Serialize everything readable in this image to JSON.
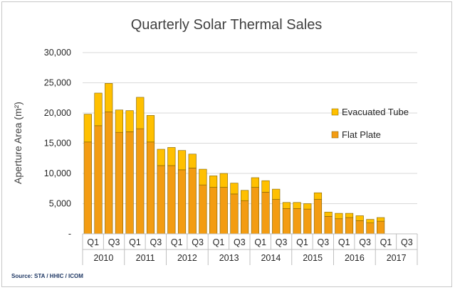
{
  "chart_data": {
    "type": "bar",
    "stacked": true,
    "title": "Quarterly Solar Thermal Sales",
    "xlabel": "",
    "ylabel": "Aperture Area (m²)",
    "ylim": [
      0,
      30000
    ],
    "yticks": [
      0,
      5000,
      10000,
      15000,
      20000,
      25000,
      30000
    ],
    "ytick_labels": [
      "-",
      "5,000",
      "10,000",
      "15,000",
      "20,000",
      "25,000",
      "30,000"
    ],
    "grid": true,
    "legend_position": "right",
    "quarter_labels": [
      "Q1",
      "Q3",
      "Q1",
      "Q3",
      "Q1",
      "Q3",
      "Q1",
      "Q3",
      "Q1",
      "Q3",
      "Q1",
      "Q3",
      "Q1",
      "Q3",
      "Q1",
      "Q3"
    ],
    "years": [
      "2010",
      "2011",
      "2012",
      "2013",
      "2014",
      "2015",
      "2016",
      "2017"
    ],
    "categories": [
      "2010 Q1",
      "2010 Q2",
      "2010 Q3",
      "2010 Q4",
      "2011 Q1",
      "2011 Q2",
      "2011 Q3",
      "2011 Q4",
      "2012 Q1",
      "2012 Q2",
      "2012 Q3",
      "2012 Q4",
      "2013 Q1",
      "2013 Q2",
      "2013 Q3",
      "2013 Q4",
      "2014 Q1",
      "2014 Q2",
      "2014 Q3",
      "2014 Q4",
      "2015 Q1",
      "2015 Q2",
      "2015 Q3",
      "2015 Q4",
      "2016 Q1",
      "2016 Q2",
      "2016 Q3",
      "2016 Q4",
      "2017 Q1",
      "2017 Q2",
      "2017 Q3",
      "2017 Q4"
    ],
    "series": [
      {
        "name": "Flat Plate",
        "color": "#f39c12",
        "values": [
          15200,
          17900,
          20200,
          16800,
          16900,
          17400,
          15200,
          11300,
          11300,
          10600,
          10900,
          8100,
          7700,
          7700,
          6600,
          5500,
          7700,
          6900,
          5700,
          4200,
          4200,
          4100,
          5700,
          2900,
          2500,
          2700,
          2200,
          1800,
          2100,
          null,
          null,
          null
        ]
      },
      {
        "name": "Evacuated Tube",
        "color": "#ffc000",
        "values": [
          4600,
          5400,
          4700,
          3700,
          3500,
          5200,
          4400,
          2700,
          3000,
          3200,
          2300,
          2600,
          1900,
          2300,
          1800,
          1700,
          1600,
          1900,
          1700,
          1000,
          1000,
          900,
          1100,
          700,
          900,
          700,
          800,
          600,
          600,
          null,
          null,
          null
        ]
      }
    ],
    "source": "Source: STA / HHIC / ICOM"
  }
}
